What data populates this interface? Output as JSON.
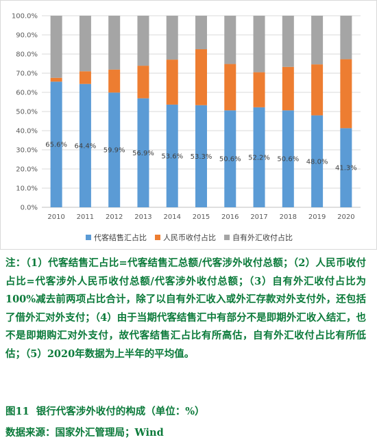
{
  "chart_data": {
    "type": "bar",
    "stacked": true,
    "percent_stacked": true,
    "categories": [
      "2010",
      "2011",
      "2012",
      "2013",
      "2014",
      "2015",
      "2016",
      "2017",
      "2018",
      "2019",
      "2020"
    ],
    "series": [
      {
        "name": "代客结售汇占比",
        "color": "#5b9bd5",
        "values": [
          65.6,
          64.4,
          59.9,
          56.9,
          53.6,
          53.3,
          50.6,
          52.2,
          50.6,
          48.0,
          41.3
        ],
        "labels": [
          "65.6%",
          "64.4%",
          "59.9%",
          "56.9%",
          "53.6%",
          "53.3%",
          "50.6%",
          "52.2%",
          "50.6%",
          "48.0%",
          "41.3%"
        ]
      },
      {
        "name": "人民币收付占比",
        "color": "#ed7d31",
        "values": [
          2.0,
          6.6,
          12.0,
          17.0,
          23.5,
          29.2,
          24.2,
          18.3,
          22.7,
          26.6,
          36.0
        ]
      },
      {
        "name": "自有外汇收付占比",
        "color": "#a5a5a5",
        "values": [
          32.4,
          29.0,
          28.1,
          26.1,
          22.9,
          17.5,
          25.2,
          29.5,
          26.7,
          25.4,
          22.7
        ]
      }
    ],
    "yticks": [
      "0.0%",
      "10.0%",
      "20.0%",
      "30.0%",
      "40.0%",
      "50.0%",
      "60.0%",
      "70.0%",
      "80.0%",
      "90.0%",
      "100.0%"
    ],
    "ylim": [
      0,
      100
    ],
    "grid": true,
    "legend_position": "bottom"
  },
  "note": "注：（1）代客结售汇占比=代客结售汇总额/代客涉外收付总额；（2）人民币收付占比=代客涉外人民币收付总额/代客涉外收付总额；（3）自有外汇收付占比为100%减去前两项占比合计，除了以自有外汇收入或外汇存款对外支付外，还包括了借外汇对外支付；（4）由于当期代客结售汇中有部分不是即期外汇收入结汇，也不是即期购汇对外支付，故代客结售汇占比有所高估，自有外汇收付占比有所低估；（5）2020年数据为上半年的平均值。",
  "caption": "图11  银行代客涉外收付的构成（单位：%）",
  "source": "数据来源：国家外汇管理局；Wind"
}
